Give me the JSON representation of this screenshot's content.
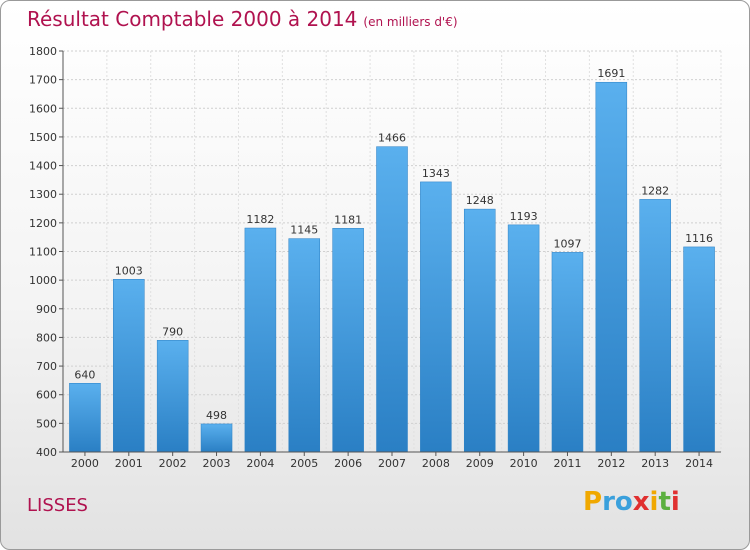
{
  "title": "Résultat Comptable 2000 à 2014",
  "subtitle": "(en milliers d'€)",
  "place": "LISSES",
  "logo": {
    "text": "Proxiti",
    "letters": [
      "P",
      "r",
      "o",
      "x",
      "i",
      "t",
      "i"
    ],
    "colors": [
      "#f0a800",
      "#3aa0dc",
      "#3aa0dc",
      "#e03030",
      "#f0a800",
      "#5cb040",
      "#e03030"
    ]
  },
  "chart_data": {
    "type": "bar",
    "title": "Résultat Comptable 2000 à 2014",
    "xlabel": "",
    "ylabel": "",
    "ylim": [
      400,
      1800
    ],
    "yticks": [
      400,
      500,
      600,
      700,
      800,
      900,
      1000,
      1100,
      1200,
      1300,
      1400,
      1500,
      1600,
      1700,
      1800
    ],
    "categories": [
      "2000",
      "2001",
      "2002",
      "2003",
      "2004",
      "2005",
      "2006",
      "2007",
      "2008",
      "2009",
      "2010",
      "2011",
      "2012",
      "2013",
      "2014"
    ],
    "values": [
      640,
      1003,
      790,
      498,
      1182,
      1145,
      1181,
      1466,
      1343,
      1248,
      1193,
      1097,
      1691,
      1282,
      1116
    ],
    "bar_color": "#4aa3e6",
    "grid": true
  }
}
